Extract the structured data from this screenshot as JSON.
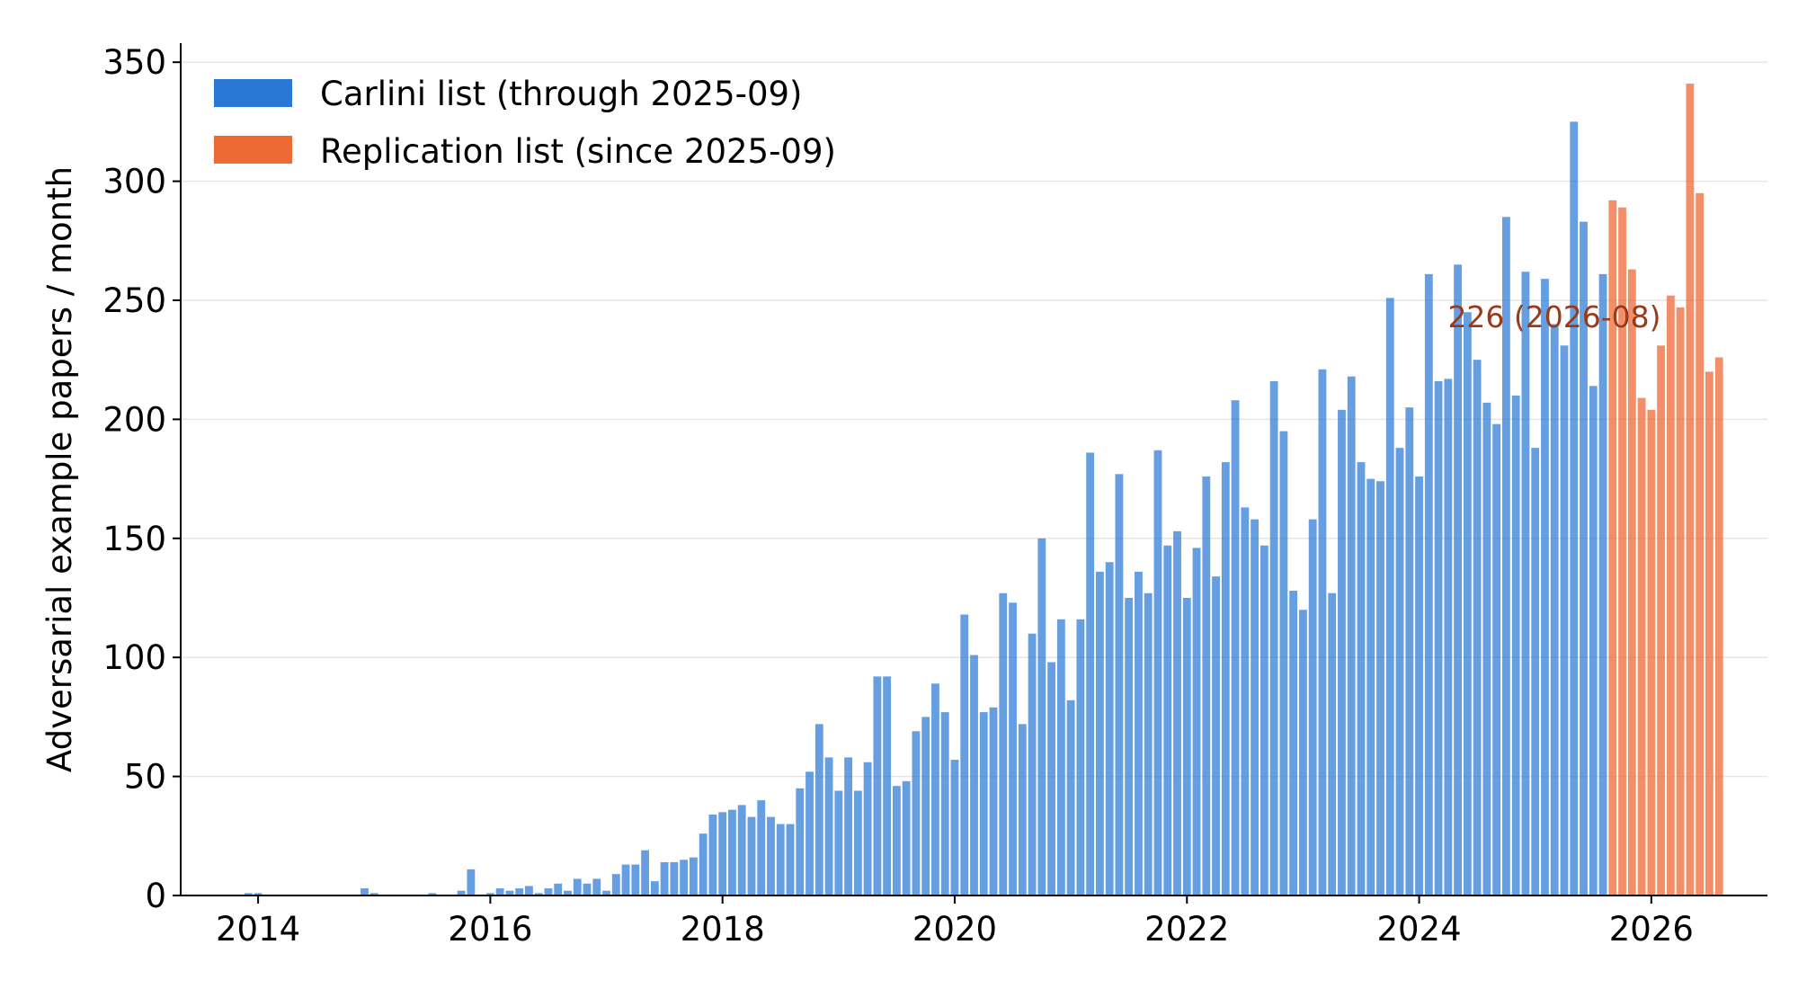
{
  "chart_data": {
    "type": "bar",
    "ylabel": "Adversarial example papers / month",
    "xlabel": "",
    "ylim": [
      0,
      358
    ],
    "xlim": [
      "2013-05",
      "2027-01"
    ],
    "grid": "horizontal",
    "legend_position": "top-left",
    "x_ticks": [
      "2014",
      "2016",
      "2018",
      "2020",
      "2022",
      "2024",
      "2026"
    ],
    "y_ticks": [
      "0",
      "50",
      "100",
      "150",
      "200",
      "250",
      "300",
      "350"
    ],
    "annotation": {
      "text": "226 (2026-08)",
      "month": "2026-08",
      "value": 226
    },
    "series": [
      {
        "name": "Carlini list (through 2025-09)",
        "color": "#2a78d6",
        "start": "2013-12",
        "values": [
          1,
          1,
          0,
          0,
          0,
          0,
          0,
          0,
          0,
          0,
          0,
          0,
          3,
          1,
          0,
          0,
          0,
          0,
          0,
          1,
          0,
          0,
          2,
          11,
          0,
          1,
          3,
          2,
          3,
          4,
          1,
          3,
          5,
          2,
          7,
          5,
          7,
          2,
          9,
          13,
          13,
          19,
          6,
          14,
          14,
          15,
          16,
          26,
          34,
          35,
          36,
          38,
          33,
          40,
          33,
          30,
          30,
          45,
          52,
          72,
          58,
          44,
          58,
          44,
          56,
          92,
          92,
          46,
          48,
          69,
          75,
          89,
          77,
          57,
          118,
          101,
          77,
          79,
          127,
          123,
          72,
          110,
          150,
          98,
          116,
          82,
          116,
          186,
          136,
          140,
          177,
          125,
          136,
          127,
          187,
          147,
          153,
          125,
          146,
          176,
          134,
          182,
          208,
          163,
          158,
          147,
          216,
          195,
          128,
          120,
          158,
          221,
          127,
          204,
          218,
          182,
          175,
          174,
          251,
          188,
          205,
          176,
          261,
          216,
          217,
          265,
          245,
          225,
          207,
          198,
          285,
          210,
          262,
          188,
          259,
          240,
          231,
          325,
          283,
          214,
          261
        ]
      },
      {
        "name": "Replication list (since 2025-09)",
        "color": "#ee6a35",
        "start": "2025-09",
        "values": [
          292,
          289,
          263,
          209,
          204,
          231,
          252,
          247,
          341,
          295,
          220,
          226
        ]
      }
    ]
  }
}
